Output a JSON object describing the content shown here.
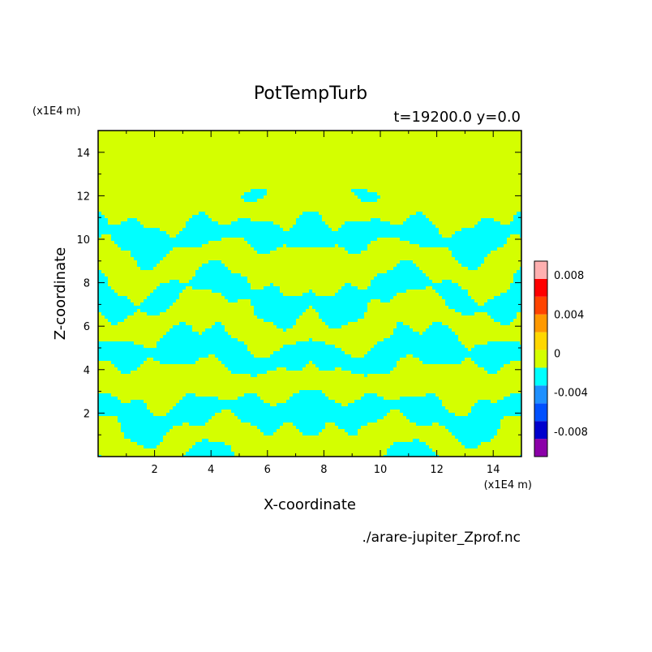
{
  "chart_data": {
    "type": "heatmap",
    "title": "PotTempTurb",
    "subtitle": "t=19200.0 y=0.0",
    "xlabel": "X-coordinate",
    "ylabel": "Z-coordinate",
    "x_unit": "(x1E4 m)",
    "y_unit": "(x1E4 m)",
    "source_file": "./arare-jupiter_Zprof.nc",
    "xlim": [
      0,
      15
    ],
    "ylim": [
      0,
      15
    ],
    "x_ticks": [
      "2",
      "4",
      "6",
      "8",
      "10",
      "12",
      "14"
    ],
    "y_ticks": [
      "2",
      "4",
      "6",
      "8",
      "10",
      "12",
      "14"
    ],
    "colorbar": {
      "levels": [
        -0.01,
        -0.008,
        -0.006,
        -0.004,
        -0.002,
        0,
        0.002,
        0.004,
        0.006,
        0.008,
        0.01
      ],
      "colors": [
        "#8b00a8",
        "#0000cd",
        "#0050ff",
        "#1e90ff",
        "#00ffff",
        "#d4ff00",
        "#ffd700",
        "#ff9900",
        "#ff4400",
        "#ff0000",
        "#ffb0b0"
      ],
      "tick_labels": [
        "0.008",
        "0.004",
        "0",
        "-0.004",
        "-0.008"
      ],
      "tick_values": [
        0.008,
        0.004,
        0,
        -0.004,
        -0.008
      ]
    },
    "field_description": {
      "background_level": "0 to 0.002",
      "pattern_level": "-0.002 to 0",
      "pattern_top": 12
    }
  }
}
